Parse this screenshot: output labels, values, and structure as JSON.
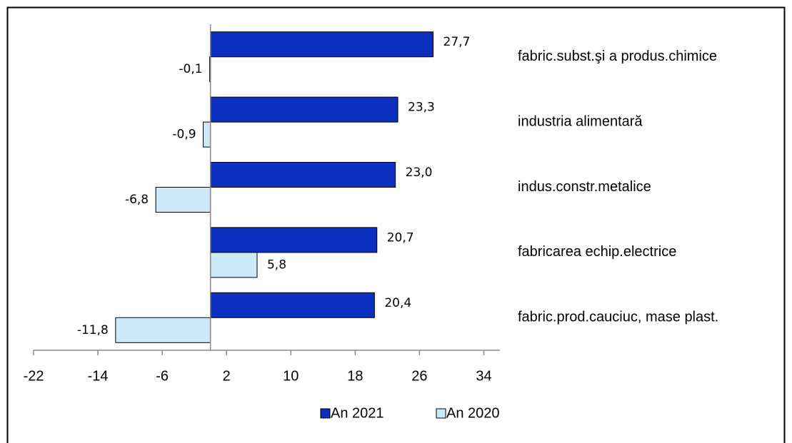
{
  "chart_data": {
    "type": "hbar",
    "categories": [
      "fabric.subst.şi a produs.chimice",
      "industria alimentară",
      "indus.constr.metalice",
      "fabricarea echip.electrice",
      "fabric.prod.cauciuc, mase plast."
    ],
    "series": [
      {
        "name": "An 2021",
        "color": "#0b2fbf",
        "values": [
          27.7,
          23.3,
          23.0,
          20.7,
          20.4
        ],
        "value_labels": [
          "27,7",
          "23,3",
          "23,0",
          "20,7",
          "20,4"
        ]
      },
      {
        "name": "An 2020",
        "color": "#cce9f9",
        "values": [
          -0.1,
          -0.9,
          -6.8,
          5.8,
          -11.8
        ],
        "value_labels": [
          "-0,1",
          "-0,9",
          "-6,8",
          "5,8",
          "-11,8"
        ]
      }
    ],
    "xlim": [
      -22,
      36
    ],
    "xticks": [
      -22,
      -14,
      -6,
      2,
      10,
      18,
      26,
      34
    ],
    "legend": "bottom"
  }
}
